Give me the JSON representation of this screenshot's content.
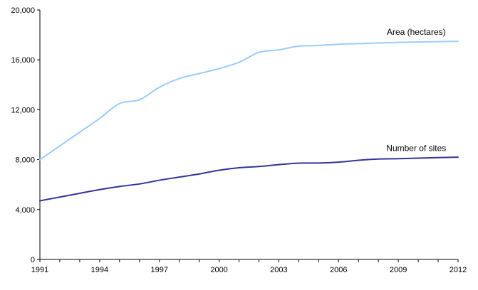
{
  "chart_data": {
    "type": "line",
    "title": "",
    "xlabel": "",
    "ylabel": "",
    "x": [
      1991,
      1992,
      1993,
      1994,
      1995,
      1996,
      1997,
      1998,
      1999,
      2000,
      2001,
      2002,
      2003,
      2004,
      2005,
      2006,
      2007,
      2008,
      2009,
      2010,
      2011,
      2012
    ],
    "xticks": [
      "1991",
      "1994",
      "1997",
      "2000",
      "2003",
      "2006",
      "2009",
      "2012"
    ],
    "xlim": [
      1991,
      2012
    ],
    "ylim": [
      0,
      20000
    ],
    "yticks": [
      "0",
      "4,000",
      "8,000",
      "12,000",
      "16,000",
      "20,000"
    ],
    "ytick_values": [
      0,
      4000,
      8000,
      12000,
      16000,
      20000
    ],
    "grid": false,
    "legend": "none",
    "series": [
      {
        "name": "Area (hectares)",
        "color": "#99ccff",
        "values": [
          8000,
          9100,
          10200,
          11300,
          12500,
          12800,
          13800,
          14500,
          14900,
          15300,
          15800,
          16600,
          16800,
          17100,
          17150,
          17250,
          17300,
          17350,
          17400,
          17430,
          17460,
          17480
        ]
      },
      {
        "name": "Number of sites",
        "color": "#333399",
        "values": [
          4700,
          5000,
          5300,
          5600,
          5850,
          6050,
          6350,
          6600,
          6850,
          7150,
          7350,
          7450,
          7600,
          7720,
          7730,
          7800,
          7950,
          8050,
          8080,
          8120,
          8160,
          8200
        ]
      }
    ]
  }
}
